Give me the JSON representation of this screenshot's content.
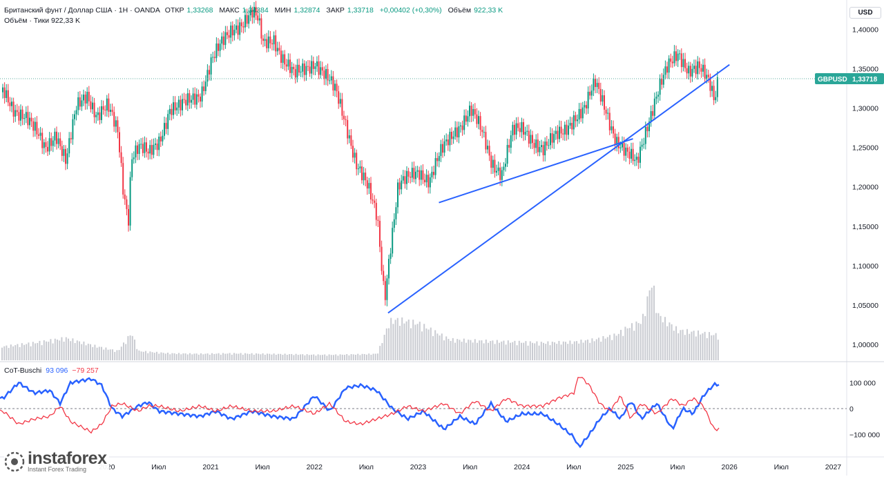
{
  "header": {
    "symbol_title": "Британский фунт / Доллар США · 1Н · OANDA",
    "open_label": "ОТКР",
    "open_value": "1,33268",
    "high_label": "МАКС",
    "high_value": "1,34384",
    "low_label": "МИН",
    "low_value": "1,32874",
    "close_label": "ЗАКР",
    "close_value": "1,33718",
    "change": "+0,00402 (+0,30%)",
    "volume_label": "Объём",
    "volume_value": "922,33 K",
    "volume_line": "Объём · Тики  922,33 K"
  },
  "currency_label": "USD",
  "price_badge": {
    "symbol": "GBPUSD",
    "value": "1,33718"
  },
  "cot": {
    "name": "CoT-Buschi",
    "value_pos": "93 096",
    "value_neg": "−79 257"
  },
  "logo": {
    "name": "instaforex",
    "tagline": "Instant Forex Trading"
  },
  "colors": {
    "up": "#089981",
    "down": "#f23645",
    "trend": "#2962ff",
    "cot_pos": "#2962ff",
    "cot_neg": "#f23645",
    "volume": "#c9cbd1",
    "price_line": "#5aa89b"
  },
  "chart_data": {
    "type": "line",
    "x_labels": [
      "н",
      "2020",
      "Июл",
      "2021",
      "Июл",
      "2022",
      "Июл",
      "2023",
      "Июл",
      "2024",
      "Июл",
      "2025",
      "Июл",
      "2026",
      "Июл",
      "2027"
    ],
    "x_label_t": [
      2019.45,
      2020.0,
      2020.5,
      2021.0,
      2021.5,
      2022.0,
      2022.5,
      2023.0,
      2023.5,
      2024.0,
      2024.5,
      2025.0,
      2025.5,
      2026.0,
      2026.5,
      2027.0
    ],
    "price_axis": [
      "1,40000",
      "1,35000",
      "1,30000",
      "1,25000",
      "1,20000",
      "1,15000",
      "1,10000",
      "1,05000",
      "1,00000"
    ],
    "price_axis_values": [
      1.4,
      1.35,
      1.3,
      1.25,
      1.2,
      1.15,
      1.1,
      1.05,
      1.0
    ],
    "ylim": [
      0.98,
      1.43
    ],
    "last_price": 1.33718,
    "price_series": {
      "t": [
        2019.0,
        2019.1,
        2019.2,
        2019.3,
        2019.4,
        2019.5,
        2019.6,
        2019.7,
        2019.8,
        2019.9,
        2020.0,
        2020.1,
        2020.15,
        2020.2,
        2020.23,
        2020.3,
        2020.4,
        2020.5,
        2020.6,
        2020.7,
        2020.8,
        2020.9,
        2021.0,
        2021.1,
        2021.2,
        2021.3,
        2021.4,
        2021.45,
        2021.5,
        2021.6,
        2021.7,
        2021.8,
        2021.9,
        2022.0,
        2022.1,
        2022.2,
        2022.3,
        2022.4,
        2022.5,
        2022.6,
        2022.67,
        2022.72,
        2022.8,
        2022.9,
        2023.0,
        2023.1,
        2023.2,
        2023.3,
        2023.4,
        2023.5,
        2023.6,
        2023.7,
        2023.8,
        2023.9,
        2024.0,
        2024.1,
        2024.2,
        2024.3,
        2024.4,
        2024.5,
        2024.6,
        2024.7,
        2024.8,
        2024.9,
        2025.0,
        2025.1,
        2025.2,
        2025.3,
        2025.4,
        2025.5,
        2025.6,
        2025.7,
        2025.8,
        2025.85,
        2025.88
      ],
      "close": [
        1.32,
        1.3,
        1.29,
        1.27,
        1.25,
        1.27,
        1.23,
        1.3,
        1.32,
        1.29,
        1.3,
        1.27,
        1.2,
        1.16,
        1.24,
        1.25,
        1.24,
        1.26,
        1.3,
        1.3,
        1.31,
        1.32,
        1.36,
        1.38,
        1.4,
        1.41,
        1.42,
        1.41,
        1.38,
        1.39,
        1.36,
        1.34,
        1.35,
        1.36,
        1.34,
        1.32,
        1.28,
        1.23,
        1.2,
        1.16,
        1.06,
        1.12,
        1.2,
        1.21,
        1.22,
        1.21,
        1.24,
        1.26,
        1.28,
        1.3,
        1.27,
        1.23,
        1.22,
        1.27,
        1.27,
        1.26,
        1.25,
        1.26,
        1.27,
        1.29,
        1.3,
        1.33,
        1.3,
        1.26,
        1.24,
        1.23,
        1.28,
        1.32,
        1.35,
        1.37,
        1.35,
        1.35,
        1.33,
        1.31,
        1.337
      ]
    },
    "trendlines": [
      {
        "t": [
          2022.71,
          2026.0
        ],
        "y": [
          1.04,
          1.355
        ]
      },
      {
        "t": [
          2023.2,
          2025.07
        ],
        "y": [
          1.18,
          1.261
        ]
      }
    ],
    "volume_series": {
      "t": [
        2019.0,
        2019.3,
        2019.6,
        2019.9,
        2020.1,
        2020.2,
        2020.23,
        2020.3,
        2020.6,
        2020.9,
        2021.2,
        2021.5,
        2021.8,
        2022.0,
        2022.2,
        2022.4,
        2022.6,
        2022.72,
        2022.8,
        2023.0,
        2023.3,
        2023.6,
        2023.9,
        2024.2,
        2024.5,
        2024.7,
        2024.9,
        2025.0,
        2025.15,
        2025.25,
        2025.3,
        2025.5,
        2025.7,
        2025.88
      ],
      "v": [
        0.3,
        0.38,
        0.48,
        0.3,
        0.2,
        0.5,
        0.6,
        0.2,
        0.15,
        0.14,
        0.15,
        0.14,
        0.13,
        0.12,
        0.12,
        0.13,
        0.14,
        0.85,
        0.88,
        0.8,
        0.45,
        0.42,
        0.4,
        0.38,
        0.4,
        0.45,
        0.55,
        0.7,
        0.85,
        1.75,
        1.0,
        0.65,
        0.6,
        0.55
      ]
    },
    "cot_axis": [
      "100 000",
      "0",
      "−100 000"
    ],
    "cot_axis_values": [
      100000,
      0,
      -100000
    ],
    "cot_ylim": [
      -160000,
      160000
    ],
    "cot_series": [
      {
        "name": "CoT-Buschi",
        "color": "#2962ff",
        "t": [
          2019.0,
          2019.15,
          2019.3,
          2019.45,
          2019.55,
          2019.65,
          2019.85,
          2019.95,
          2020.05,
          2020.15,
          2020.3,
          2020.4,
          2020.5,
          2020.7,
          2020.9,
          2021.05,
          2021.2,
          2021.4,
          2021.6,
          2021.8,
          2022.0,
          2022.15,
          2022.3,
          2022.45,
          2022.6,
          2022.75,
          2022.9,
          2023.05,
          2023.25,
          2023.4,
          2023.55,
          2023.7,
          2023.85,
          2024.0,
          2024.2,
          2024.35,
          2024.5,
          2024.55,
          2024.65,
          2024.75,
          2024.85,
          2024.95,
          2025.05,
          2025.15,
          2025.3,
          2025.45,
          2025.55,
          2025.65,
          2025.75,
          2025.85,
          2025.9
        ],
        "v": [
          40000,
          100000,
          60000,
          70000,
          20000,
          100000,
          115000,
          90000,
          0,
          -30000,
          10000,
          25000,
          -10000,
          -20000,
          -30000,
          -10000,
          -40000,
          -10000,
          -30000,
          -40000,
          50000,
          -10000,
          80000,
          90000,
          70000,
          0,
          -40000,
          -10000,
          -80000,
          -30000,
          -60000,
          20000,
          -50000,
          -20000,
          -20000,
          -60000,
          -110000,
          -150000,
          -100000,
          -40000,
          0,
          -40000,
          30000,
          -40000,
          20000,
          -80000,
          0,
          -20000,
          50000,
          93096,
          93096
        ]
      },
      {
        "name": "",
        "color": "#f23645",
        "t": [
          2019.0,
          2019.15,
          2019.3,
          2019.45,
          2019.55,
          2019.65,
          2019.85,
          2019.95,
          2020.05,
          2020.15,
          2020.3,
          2020.4,
          2020.5,
          2020.7,
          2020.9,
          2021.05,
          2021.2,
          2021.4,
          2021.6,
          2021.8,
          2022.0,
          2022.15,
          2022.3,
          2022.45,
          2022.6,
          2022.75,
          2022.9,
          2023.05,
          2023.25,
          2023.4,
          2023.55,
          2023.7,
          2023.85,
          2024.0,
          2024.2,
          2024.35,
          2024.5,
          2024.55,
          2024.65,
          2024.75,
          2024.85,
          2024.95,
          2025.05,
          2025.15,
          2025.3,
          2025.45,
          2025.55,
          2025.65,
          2025.75,
          2025.85,
          2025.9
        ],
        "v": [
          -10000,
          -60000,
          -40000,
          -30000,
          10000,
          -50000,
          -90000,
          -60000,
          10000,
          20000,
          -10000,
          10000,
          10000,
          -10000,
          10000,
          -10000,
          10000,
          -10000,
          -10000,
          10000,
          -20000,
          20000,
          -50000,
          -60000,
          -40000,
          -20000,
          10000,
          -10000,
          20000,
          -20000,
          30000,
          -10000,
          40000,
          10000,
          10000,
          40000,
          60000,
          130000,
          90000,
          20000,
          -10000,
          50000,
          -40000,
          20000,
          -20000,
          40000,
          10000,
          40000,
          10000,
          -79257,
          -79257
        ]
      }
    ]
  }
}
